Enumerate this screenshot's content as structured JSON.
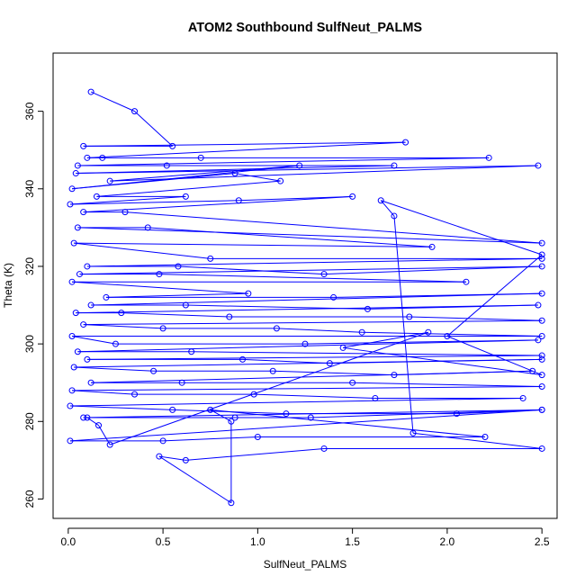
{
  "chart_data": {
    "type": "line",
    "title": "ATOM2 Southbound SulfNeut_PALMS",
    "xlabel": "SulfNeut_PALMS",
    "ylabel": "Theta (K)",
    "xlim": [
      -0.08,
      2.58
    ],
    "ylim": [
      255,
      375
    ],
    "xticks": [
      0.0,
      0.5,
      1.0,
      1.5,
      2.0,
      2.5
    ],
    "xtick_labels": [
      "0.0",
      "0.5",
      "1.0",
      "1.5",
      "2.0",
      "2.5"
    ],
    "yticks": [
      260,
      280,
      300,
      320,
      340,
      360
    ],
    "ytick_labels": [
      "260",
      "280",
      "300",
      "320",
      "340",
      "360"
    ],
    "grid": false,
    "legend": "none",
    "series": [
      {
        "color": "#0000ff",
        "marker": "open-circle",
        "x": [
          0.12,
          0.35,
          0.55,
          0.08,
          1.78,
          0.1,
          0.18,
          0.7,
          2.22,
          0.05,
          0.52,
          1.72,
          0.04,
          2.48,
          0.22,
          1.22,
          0.02,
          0.88,
          1.12,
          0.15,
          0.62,
          0.01,
          0.9,
          1.5,
          0.08,
          0.3,
          2.5,
          0.05,
          0.42,
          1.92,
          0.03,
          0.75,
          2.5,
          0.1,
          0.58,
          1.35,
          2.5,
          0.06,
          0.48,
          2.1,
          0.02,
          0.95,
          0.2,
          1.4,
          2.5,
          0.12,
          0.62,
          1.58,
          2.48,
          0.04,
          0.28,
          0.85,
          1.8,
          2.5,
          0.08,
          0.5,
          1.1,
          1.55,
          2.5,
          0.02,
          0.25,
          1.25,
          2.48,
          0.05,
          0.65,
          2.5,
          0.1,
          0.92,
          1.38,
          2.5,
          0.03,
          0.45,
          1.08,
          1.72,
          2.45,
          0.12,
          0.6,
          1.5,
          2.5,
          0.02,
          0.35,
          0.98,
          1.62,
          2.4,
          0.01,
          0.55,
          1.15,
          2.05,
          2.5,
          0.08,
          0.88,
          1.28,
          2.5,
          0.01,
          0.5,
          1.0,
          2.2,
          0.75,
          0.86,
          0.86,
          0.48,
          0.62,
          1.35,
          2.5,
          1.82,
          1.72,
          1.65,
          2.5,
          2.0,
          2.5,
          1.45,
          1.9,
          0.22,
          0.16,
          0.1
        ],
        "y": [
          365,
          360,
          351,
          351,
          352,
          348,
          348,
          348,
          348,
          346,
          346,
          346,
          344,
          346,
          342,
          346,
          340,
          344,
          342,
          338,
          338,
          336,
          337,
          338,
          334,
          334,
          326,
          330,
          330,
          325,
          326,
          322,
          322,
          320,
          320,
          318,
          320,
          318,
          318,
          316,
          316,
          313,
          312,
          312,
          313,
          310,
          310,
          309,
          310,
          308,
          308,
          307,
          307,
          306,
          305,
          304,
          304,
          303,
          302,
          302,
          300,
          300,
          301,
          298,
          298,
          297,
          296,
          296,
          295,
          296,
          294,
          293,
          293,
          292,
          293,
          290,
          290,
          290,
          289,
          288,
          287,
          287,
          286,
          286,
          284,
          283,
          282,
          282,
          283,
          281,
          281,
          281,
          283,
          275,
          275,
          276,
          276,
          283,
          280,
          259,
          271,
          270,
          273,
          273,
          277,
          333,
          337,
          323,
          302,
          292,
          299,
          303,
          274,
          279,
          281
        ]
      }
    ]
  }
}
